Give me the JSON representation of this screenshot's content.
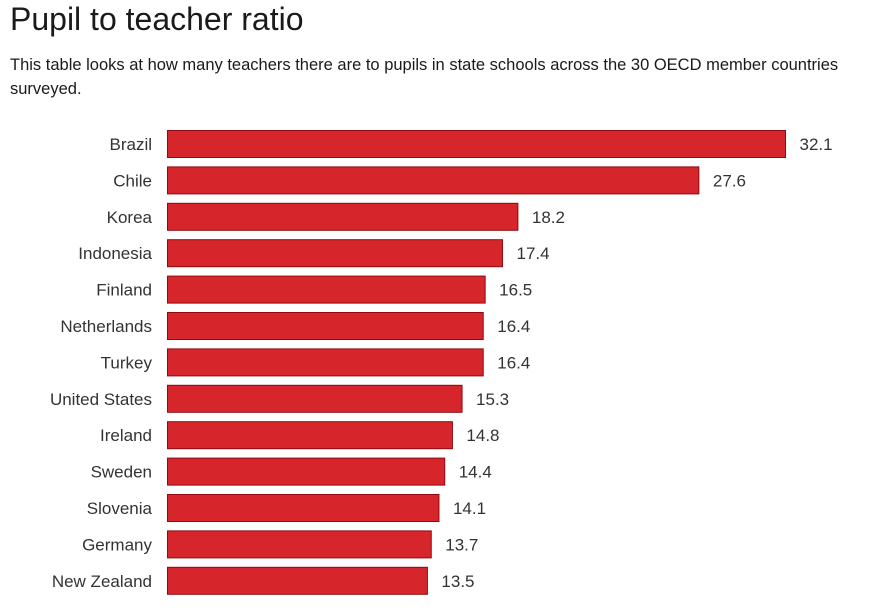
{
  "header": {
    "title": "Pupil to teacher ratio",
    "subtitle": "This table looks at how many teachers there are to pupils in state schools across the 30 OECD member countries surveyed."
  },
  "colors": {
    "bar_fill": "#d7262b",
    "bar_stroke": "#8e0a10"
  },
  "chart_data": {
    "type": "bar",
    "orientation": "horizontal",
    "title": "Pupil to teacher ratio",
    "xlabel": "",
    "ylabel": "",
    "categories": [
      "Brazil",
      "Chile",
      "Korea",
      "Indonesia",
      "Finland",
      "Netherlands",
      "Turkey",
      "United States",
      "Ireland",
      "Sweden",
      "Slovenia",
      "Germany",
      "New Zealand"
    ],
    "values": [
      32.1,
      27.6,
      18.2,
      17.4,
      16.5,
      16.4,
      16.4,
      15.3,
      14.8,
      14.4,
      14.1,
      13.7,
      13.5
    ],
    "value_labels": [
      "32.1",
      "27.6",
      "18.2",
      "17.4",
      "16.5",
      "16.4",
      "16.4",
      "15.3",
      "14.8",
      "14.4",
      "14.1",
      "13.7",
      "13.5"
    ],
    "xlim": [
      0,
      32.1
    ],
    "grid": false,
    "legend": "none"
  }
}
